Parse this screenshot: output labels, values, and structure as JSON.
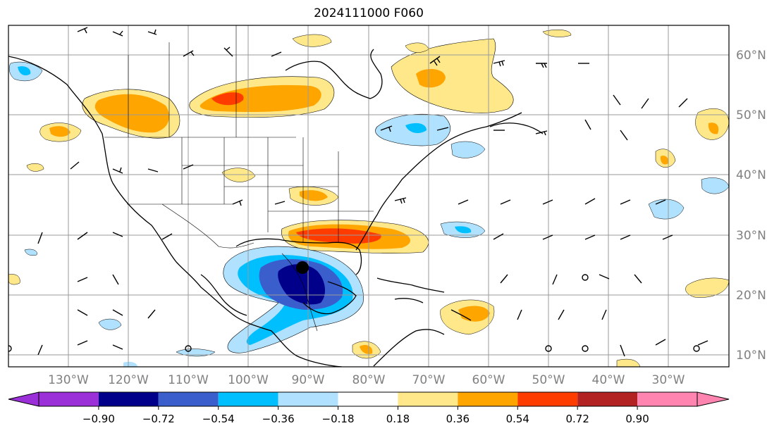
{
  "title": "2024111000 F060",
  "lon_labels": [
    "130°W",
    "120°W",
    "110°W",
    "100°W",
    "90°W",
    "80°W",
    "70°W",
    "60°W",
    "50°W",
    "40°W",
    "30°W"
  ],
  "lat_labels": [
    "60°N",
    "50°N",
    "40°N",
    "30°N",
    "20°N",
    "10°N"
  ],
  "colorbar": {
    "levels": [
      "−0.90",
      "−0.72",
      "−0.54",
      "−0.36",
      "−0.18",
      "0.18",
      "0.36",
      "0.54",
      "0.72",
      "0.90"
    ],
    "colors": [
      "#9b30d8",
      "#00008b",
      "#3a5fcd",
      "#00bfff",
      "#b0e2ff",
      "#ffffff",
      "#ffe88a",
      "#ffa500",
      "#ff3c00",
      "#b22222",
      "#ff85b0"
    ]
  },
  "map": {
    "projection": "plate-carree",
    "lon_range": [
      -142,
      -22
    ],
    "lat_range": [
      8,
      65
    ],
    "gridlines": true,
    "field": "shaded anomaly with wind barbs",
    "storm_marker": "black dot near 24.5°N 90.5°W"
  }
}
